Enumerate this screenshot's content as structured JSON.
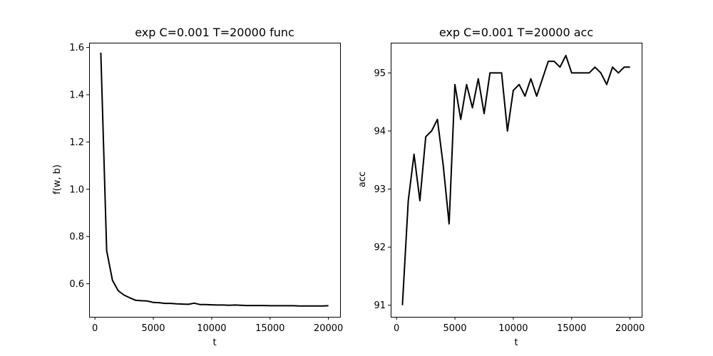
{
  "colors": {
    "background": "#ffffff",
    "axes": "#000000",
    "line": "#000000"
  },
  "chart_data": [
    {
      "type": "line",
      "title": "exp C=0.001 T=20000 func",
      "xlabel": "t",
      "ylabel": "f(w, b)",
      "xlim": [
        -500,
        21000
      ],
      "ylim": [
        0.46,
        1.62
      ],
      "xticks": [
        0,
        5000,
        10000,
        15000,
        20000
      ],
      "xtick_labels": [
        "0",
        "5000",
        "10000",
        "15000",
        "20000"
      ],
      "yticks": [
        0.6,
        0.8,
        1.0,
        1.2,
        1.4,
        1.6
      ],
      "ytick_labels": [
        "0.6",
        "0.8",
        "1.0",
        "1.2",
        "1.4",
        "1.6"
      ],
      "grid": false,
      "series": [
        {
          "x": [
            500,
            1000,
            1500,
            2000,
            2500,
            3000,
            3500,
            4000,
            4500,
            5000,
            5500,
            6000,
            6500,
            7000,
            7500,
            8000,
            8500,
            9000,
            9500,
            10000,
            10500,
            11000,
            11500,
            12000,
            12500,
            13000,
            13500,
            14000,
            14500,
            15000,
            15500,
            16000,
            16500,
            17000,
            17500,
            18000,
            18500,
            19000,
            19500,
            20000
          ],
          "values": [
            1.578,
            0.74,
            0.615,
            0.57,
            0.552,
            0.54,
            0.53,
            0.528,
            0.527,
            0.521,
            0.52,
            0.517,
            0.517,
            0.515,
            0.514,
            0.513,
            0.518,
            0.512,
            0.512,
            0.511,
            0.51,
            0.51,
            0.509,
            0.51,
            0.509,
            0.508,
            0.508,
            0.508,
            0.508,
            0.507,
            0.507,
            0.507,
            0.507,
            0.507,
            0.506,
            0.506,
            0.506,
            0.506,
            0.506,
            0.507
          ]
        }
      ]
    },
    {
      "type": "line",
      "title": "exp C=0.001 T=20000 acc",
      "xlabel": "t",
      "ylabel": "acc",
      "xlim": [
        -500,
        21000
      ],
      "ylim": [
        90.8,
        95.52
      ],
      "xticks": [
        0,
        5000,
        10000,
        15000,
        20000
      ],
      "xtick_labels": [
        "0",
        "5000",
        "10000",
        "15000",
        "20000"
      ],
      "yticks": [
        91,
        92,
        93,
        94,
        95
      ],
      "ytick_labels": [
        "91",
        "92",
        "93",
        "94",
        "95"
      ],
      "grid": false,
      "series": [
        {
          "x": [
            500,
            1000,
            1500,
            2000,
            2500,
            3000,
            3500,
            4000,
            4500,
            5000,
            5500,
            6000,
            6500,
            7000,
            7500,
            8000,
            8500,
            9000,
            9500,
            10000,
            10500,
            11000,
            11500,
            12000,
            12500,
            13000,
            13500,
            14000,
            14500,
            15000,
            15500,
            16000,
            16500,
            17000,
            17500,
            18000,
            18500,
            19000,
            19500,
            20000
          ],
          "values": [
            91.0,
            92.8,
            93.6,
            92.8,
            93.9,
            94.0,
            94.2,
            93.4,
            92.4,
            94.8,
            94.2,
            94.8,
            94.4,
            94.9,
            94.3,
            95.0,
            95.0,
            95.0,
            94.0,
            94.7,
            94.8,
            94.6,
            94.9,
            94.6,
            94.9,
            95.2,
            95.2,
            95.1,
            95.3,
            95.0,
            95.0,
            95.0,
            95.0,
            95.1,
            95.0,
            94.8,
            95.1,
            95.0,
            95.1,
            95.1
          ]
        }
      ]
    }
  ]
}
